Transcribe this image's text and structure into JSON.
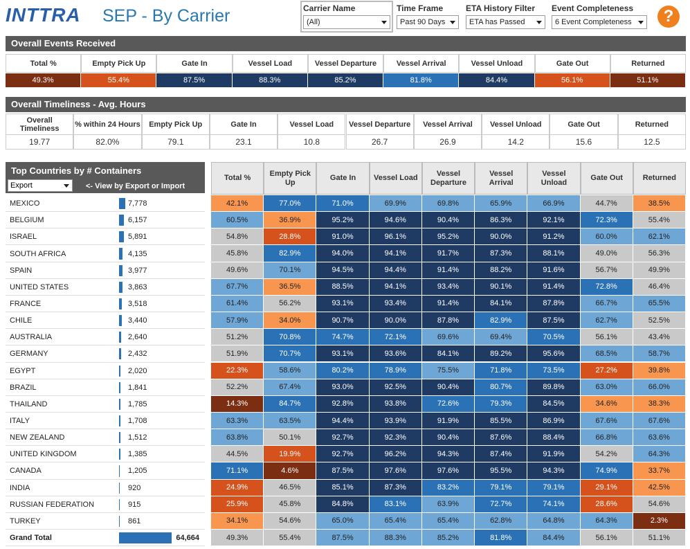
{
  "header": {
    "logo": "INTTRA",
    "title": "SEP - By Carrier",
    "help": "?"
  },
  "filters": [
    {
      "label": "Carrier Name",
      "value": "(All)"
    },
    {
      "label": "Time Frame",
      "value": "Past 90 Days"
    },
    {
      "label": "ETA History Filter",
      "value": "ETA has Passed"
    },
    {
      "label": "Event Completeness",
      "value": "6 Event Completeness"
    }
  ],
  "palette": {
    "D": "#1f3a63",
    "B": "#2a72b5",
    "L": "#6ea6d5",
    "G": "#c9c9c9",
    "O": "#f8954f",
    "R": "#d6521c",
    "M": "#7c2e12"
  },
  "events": {
    "title": "Overall Events Received",
    "columns": [
      "Total %",
      "Empty Pick Up",
      "Gate In",
      "Vessel Load",
      "Vessel Departure",
      "Vessel Arrival",
      "Vessel Unload",
      "Gate Out",
      "Returned"
    ],
    "values": [
      "49.3%",
      "55.4%",
      "87.5%",
      "88.3%",
      "85.2%",
      "81.8%",
      "84.4%",
      "56.1%",
      "51.1%"
    ],
    "colors": "MRDDDBDRM"
  },
  "timeliness": {
    "title": "Overall Timeliness - Avg. Hours",
    "columns": [
      "Overall Timeliness",
      "% within 24 Hours",
      "Empty Pick Up",
      "Gate In",
      "Vessel Load",
      "Vessel Departure",
      "Vessel Arrival",
      "Vessel Unload",
      "Gate Out",
      "Returned"
    ],
    "values": [
      "19.77",
      "82.0%",
      "79.1",
      "23.1",
      "10.8",
      "26.7",
      "26.9",
      "14.2",
      "15.6",
      "12.5"
    ]
  },
  "countries": {
    "title": "Top Countries by # Containers",
    "filter": "Export",
    "hint": "<- View by Export or Import",
    "columns": [
      "Total %",
      "Empty Pick Up",
      "Gate In",
      "Vessel Load",
      "Vessel Departure",
      "Vessel Arrival",
      "Vessel Unload",
      "Gate Out",
      "Returned"
    ],
    "rows": [
      {
        "name": "MEXICO",
        "containers": 7778,
        "label": "7,778",
        "values": [
          "42.1%",
          "77.0%",
          "71.0%",
          "69.9%",
          "69.8%",
          "65.9%",
          "66.9%",
          "44.7%",
          "38.5%"
        ],
        "colors": "OBBLLLLGO"
      },
      {
        "name": "BELGIUM",
        "containers": 6157,
        "label": "6,157",
        "values": [
          "60.5%",
          "36.9%",
          "95.2%",
          "94.6%",
          "90.4%",
          "86.3%",
          "92.1%",
          "72.3%",
          "55.4%"
        ],
        "colors": "LODDDDDBG"
      },
      {
        "name": "ISRAEL",
        "containers": 5891,
        "label": "5,891",
        "values": [
          "54.8%",
          "28.8%",
          "91.0%",
          "96.1%",
          "95.2%",
          "90.0%",
          "91.2%",
          "60.0%",
          "62.1%"
        ],
        "colors": "GRDDDDDLL"
      },
      {
        "name": "SOUTH AFRICA",
        "containers": 4135,
        "label": "4,135",
        "values": [
          "45.8%",
          "82.9%",
          "94.0%",
          "94.1%",
          "91.7%",
          "87.3%",
          "88.1%",
          "49.0%",
          "56.3%"
        ],
        "colors": "GBDDDDDGG"
      },
      {
        "name": "SPAIN",
        "containers": 3977,
        "label": "3,977",
        "values": [
          "49.6%",
          "70.1%",
          "94.5%",
          "94.4%",
          "91.4%",
          "88.2%",
          "91.6%",
          "56.7%",
          "49.9%"
        ],
        "colors": "GLDDDDDGG"
      },
      {
        "name": "UNITED STATES",
        "containers": 3863,
        "label": "3,863",
        "values": [
          "67.7%",
          "36.5%",
          "88.5%",
          "94.1%",
          "93.4%",
          "90.1%",
          "91.4%",
          "72.8%",
          "46.4%"
        ],
        "colors": "LODDDDDBG"
      },
      {
        "name": "FRANCE",
        "containers": 3518,
        "label": "3,518",
        "values": [
          "61.4%",
          "56.2%",
          "93.1%",
          "93.4%",
          "91.4%",
          "84.1%",
          "87.8%",
          "66.7%",
          "65.5%"
        ],
        "colors": "LGDDDDDLL"
      },
      {
        "name": "CHILE",
        "containers": 3440,
        "label": "3,440",
        "values": [
          "57.9%",
          "34.0%",
          "90.7%",
          "90.0%",
          "87.8%",
          "82.9%",
          "87.5%",
          "62.7%",
          "52.5%"
        ],
        "colors": "LODDDBDLG"
      },
      {
        "name": "AUSTRALIA",
        "containers": 2640,
        "label": "2,640",
        "values": [
          "51.2%",
          "70.8%",
          "74.7%",
          "72.1%",
          "69.6%",
          "69.4%",
          "70.5%",
          "56.1%",
          "43.4%"
        ],
        "colors": "GBBBLLBGG"
      },
      {
        "name": "GERMANY",
        "containers": 2432,
        "label": "2,432",
        "values": [
          "51.9%",
          "70.7%",
          "93.1%",
          "93.6%",
          "84.1%",
          "89.2%",
          "95.6%",
          "68.5%",
          "58.7%"
        ],
        "colors": "GBDDDDDLL"
      },
      {
        "name": "EGYPT",
        "containers": 2020,
        "label": "2,020",
        "values": [
          "22.3%",
          "58.6%",
          "80.2%",
          "78.9%",
          "75.5%",
          "71.8%",
          "73.5%",
          "27.2%",
          "39.8%"
        ],
        "colors": "RLBBLBBRO"
      },
      {
        "name": "BRAZIL",
        "containers": 1841,
        "label": "1,841",
        "values": [
          "52.2%",
          "67.4%",
          "93.0%",
          "92.5%",
          "90.4%",
          "80.7%",
          "89.8%",
          "63.0%",
          "66.0%"
        ],
        "colors": "GLDDDBDLL"
      },
      {
        "name": "THAILAND",
        "containers": 1785,
        "label": "1,785",
        "values": [
          "14.3%",
          "84.7%",
          "92.8%",
          "93.8%",
          "72.6%",
          "79.3%",
          "84.5%",
          "34.6%",
          "38.3%"
        ],
        "colors": "MBDDBBDOO"
      },
      {
        "name": "ITALY",
        "containers": 1708,
        "label": "1,708",
        "values": [
          "63.3%",
          "63.5%",
          "94.4%",
          "93.9%",
          "91.9%",
          "85.5%",
          "86.9%",
          "67.6%",
          "67.6%"
        ],
        "colors": "LLDDDDDLL"
      },
      {
        "name": "NEW ZEALAND",
        "containers": 1512,
        "label": "1,512",
        "values": [
          "63.8%",
          "50.1%",
          "92.7%",
          "92.3%",
          "90.4%",
          "87.6%",
          "88.4%",
          "66.8%",
          "63.6%"
        ],
        "colors": "LGDDDDDLL"
      },
      {
        "name": "UNITED KINGDOM",
        "containers": 1385,
        "label": "1,385",
        "values": [
          "44.5%",
          "19.9%",
          "92.7%",
          "96.2%",
          "94.3%",
          "87.4%",
          "91.9%",
          "54.2%",
          "64.3%"
        ],
        "colors": "GRDDDDDGL"
      },
      {
        "name": "CANADA",
        "containers": 1205,
        "label": "1,205",
        "values": [
          "71.1%",
          "4.6%",
          "87.5%",
          "97.6%",
          "97.6%",
          "95.5%",
          "94.3%",
          "74.9%",
          "33.7%"
        ],
        "colors": "BMDDDDDBO"
      },
      {
        "name": "INDIA",
        "containers": 920,
        "label": "920",
        "values": [
          "24.9%",
          "46.5%",
          "85.1%",
          "87.3%",
          "83.2%",
          "79.1%",
          "79.1%",
          "29.1%",
          "42.5%"
        ],
        "colors": "RGDDBBBRO"
      },
      {
        "name": "RUSSIAN FEDERATION",
        "containers": 915,
        "label": "915",
        "values": [
          "25.9%",
          "45.8%",
          "84.8%",
          "83.1%",
          "63.9%",
          "72.7%",
          "74.1%",
          "28.6%",
          "54.6%"
        ],
        "colors": "RGDBLBBRG"
      },
      {
        "name": "TURKEY",
        "containers": 861,
        "label": "861",
        "values": [
          "34.1%",
          "54.6%",
          "65.0%",
          "65.4%",
          "65.4%",
          "62.8%",
          "64.8%",
          "64.3%",
          "2.3%"
        ],
        "colors": "OGLLLLLLM"
      }
    ],
    "total": {
      "name": "Grand Total",
      "containers": 64664,
      "label": "64,664",
      "values": [
        "49.3%",
        "55.4%",
        "87.5%",
        "88.3%",
        "85.2%",
        "81.8%",
        "84.4%",
        "56.1%",
        "51.1%"
      ],
      "colors": "GGLLLBLGG"
    }
  }
}
